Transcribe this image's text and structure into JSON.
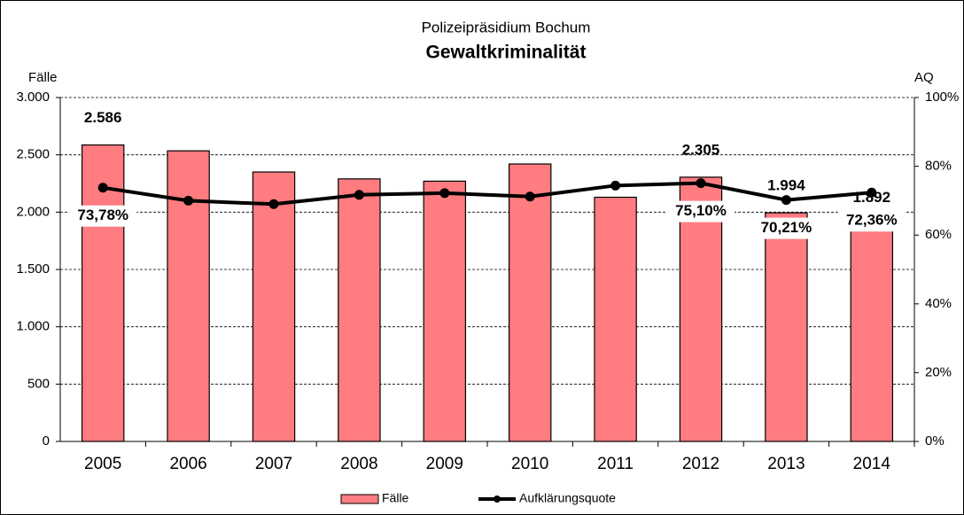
{
  "chart_data": {
    "type": "bar",
    "title": "Polizeipräsidium Bochum",
    "subtitle": "Gewaltkriminalität",
    "y_label": "Fälle",
    "y2_label": "AQ",
    "categories": [
      "2005",
      "2006",
      "2007",
      "2008",
      "2009",
      "2010",
      "2011",
      "2012",
      "2013",
      "2014"
    ],
    "series": [
      {
        "name": "Fälle",
        "type": "bar",
        "color": "#ff7c80",
        "values": [
          2586,
          2535,
          2350,
          2290,
          2270,
          2420,
          2130,
          2305,
          1994,
          1892
        ],
        "value_labels": [
          "2.586",
          null,
          null,
          null,
          null,
          null,
          null,
          "2.305",
          "1.994",
          "1.892"
        ]
      },
      {
        "name": "Aufklärungsquote",
        "type": "line",
        "axis": "y2",
        "color": "#000000",
        "values": [
          73.78,
          70.0,
          69.0,
          71.7,
          72.2,
          71.2,
          74.4,
          75.1,
          70.21,
          72.36
        ],
        "value_labels": [
          "73,78%",
          null,
          null,
          null,
          null,
          null,
          null,
          "75,10%",
          "70,21%",
          "72,36%"
        ]
      }
    ],
    "ylim": [
      0,
      3000
    ],
    "yticks": [
      0,
      500,
      {
        "value": 1000,
        "label": "1.000"
      },
      {
        "value": 1500,
        "label": "1.500"
      },
      {
        "value": 2000,
        "label": "2.000"
      },
      {
        "value": 2500,
        "label": "2.500"
      },
      {
        "value": 3000,
        "label": "3.000"
      }
    ],
    "y2lim": [
      0,
      100
    ],
    "y2ticks": [
      {
        "value": 0,
        "label": "0%"
      },
      {
        "value": 20,
        "label": "20%"
      },
      {
        "value": 40,
        "label": "40%"
      },
      {
        "value": 60,
        "label": "60%"
      },
      {
        "value": 80,
        "label": "80%"
      },
      {
        "value": 100,
        "label": "100%"
      }
    ],
    "grid": true
  }
}
